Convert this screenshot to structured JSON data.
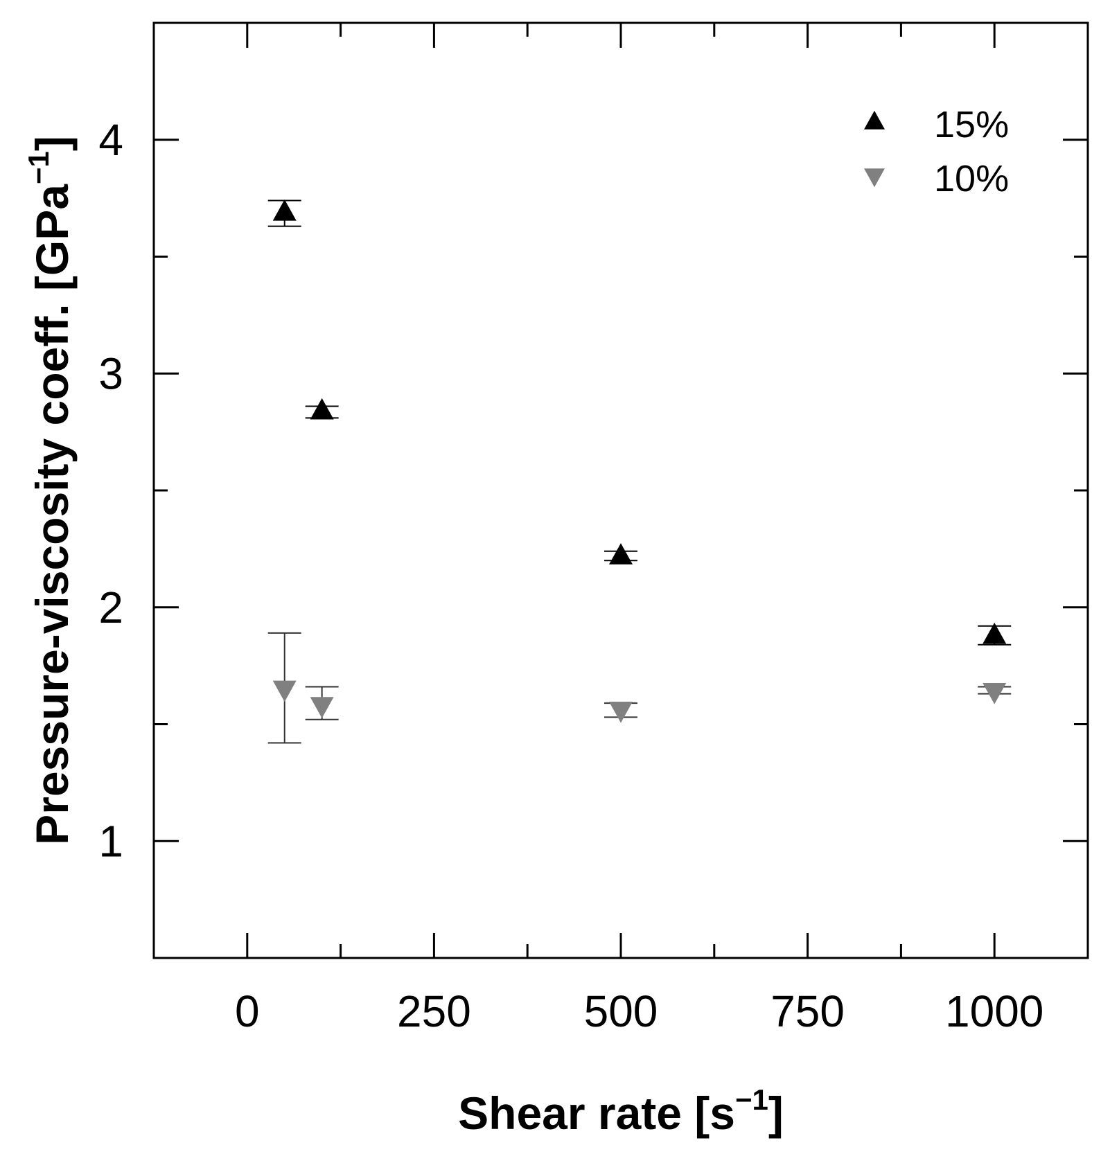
{
  "chart_data": {
    "type": "scatter",
    "xlabel_main": "Shear rate [s",
    "xlabel_sup": "−1",
    "xlabel_close": "]",
    "ylabel_main": "Pressure-viscosity coeff. [GPa",
    "ylabel_sup": "−1",
    "ylabel_close": "]",
    "xlim": [
      -125,
      1125
    ],
    "ylim": [
      0.5,
      4.5
    ],
    "x_major_ticks": [
      0,
      250,
      500,
      750,
      1000
    ],
    "x_tick_labels": [
      "0",
      "250",
      "500",
      "750",
      "1000"
    ],
    "x_minor_ticks": [
      125,
      375,
      625,
      875
    ],
    "y_major_ticks": [
      1,
      2,
      3,
      4
    ],
    "y_tick_labels": [
      "1",
      "2",
      "3",
      "4"
    ],
    "y_minor_ticks": [
      1.5,
      2.5,
      3.5
    ],
    "grid": false,
    "legend_position": "top-right",
    "series": [
      {
        "name": "15%",
        "marker": "triangle-up",
        "color": "#000000",
        "x": [
          50,
          100,
          500,
          1000
        ],
        "y": [
          3.69,
          2.84,
          2.22,
          1.88
        ],
        "err_low": [
          3.63,
          2.81,
          2.2,
          1.84
        ],
        "err_high": [
          3.74,
          2.86,
          2.24,
          1.92
        ]
      },
      {
        "name": "10%",
        "marker": "triangle-down",
        "color": "#808080",
        "x": [
          50,
          100,
          500,
          1000
        ],
        "y": [
          1.65,
          1.58,
          1.56,
          1.64
        ],
        "err_low": [
          1.42,
          1.52,
          1.53,
          1.63
        ],
        "err_high": [
          1.89,
          1.66,
          1.59,
          1.66
        ]
      }
    ]
  }
}
